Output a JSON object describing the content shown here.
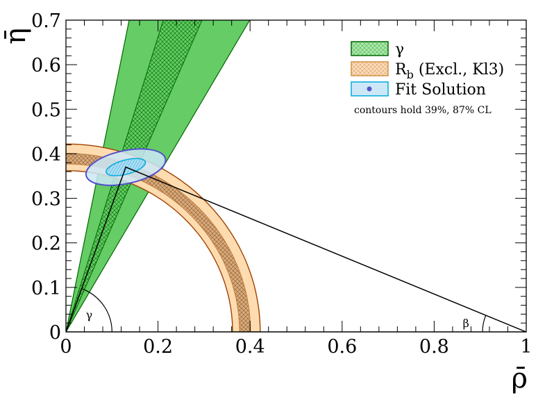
{
  "chart_data": {
    "type": "contour",
    "xlabel": "ρ̄",
    "ylabel": "η̄",
    "xlim": [
      0,
      1
    ],
    "ylim": [
      0,
      0.7
    ],
    "xticks": [
      "0",
      "0.2",
      "0.4",
      "0.6",
      "0.8",
      "1"
    ],
    "yticks": [
      "0",
      "0.1",
      "0.2",
      "0.3",
      "0.4",
      "0.5",
      "0.6",
      "0.7"
    ],
    "apex": [
      0.13,
      0.37
    ],
    "gamma_constraint": {
      "name": "γ",
      "color": "#66cc66",
      "outer_edge": "#006600",
      "outer_angles_deg": [
        60.3,
        78.9
      ],
      "inner_angles_deg": [
        67.1,
        73.2
      ]
    },
    "rb_constraint": {
      "name": "R",
      "subscript": "b",
      "suffix": " (Excl., Kl3)",
      "color": "#ffdcaa",
      "inner_color": "#d8a878",
      "outer_radii": [
        0.362,
        0.422
      ],
      "inner_radii": [
        0.377,
        0.401
      ]
    },
    "fit_solution": {
      "name": "Fit Solution",
      "center": [
        0.13,
        0.37
      ],
      "ellipse_outer": {
        "rx": 0.088,
        "ry": 0.037,
        "tilt_deg": -12
      },
      "ellipse_inner": {
        "rx": 0.044,
        "ry": 0.016,
        "tilt_deg": -15
      },
      "fill": "#cce8f8",
      "outer_edge": "#5050cc",
      "inner_edge": "#00aadd",
      "marker_color": "#5555cc"
    },
    "angle_labels": {
      "gamma": "γ",
      "beta": "β"
    },
    "note": "contours hold 39%, 87% CL"
  }
}
